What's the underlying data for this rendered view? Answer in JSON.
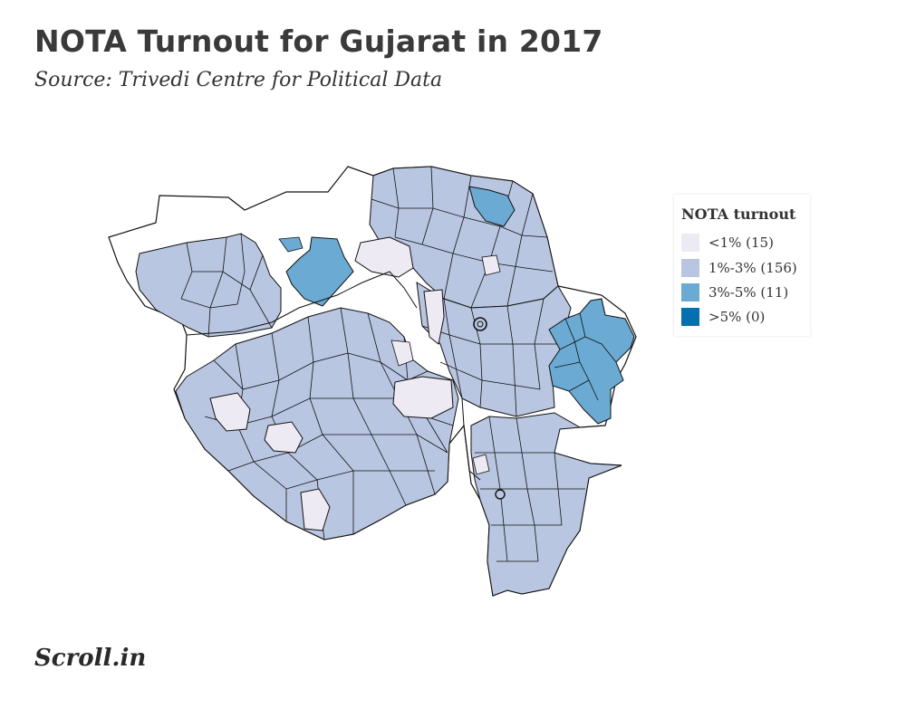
{
  "header": {
    "title": "NOTA Turnout for Gujarat in 2017",
    "subtitle": "Source: Trivedi Centre for Political Data"
  },
  "legend": {
    "title": "NOTA turnout",
    "items": [
      {
        "label": "<1% (15)",
        "color": "#eeeaf4"
      },
      {
        "label": "1%-3% (156)",
        "color": "#b9c6e1"
      },
      {
        "label": "3%-5% (11)",
        "color": "#6aaad3"
      },
      {
        "label": ">5% (0)",
        "color": "#0570b0"
      }
    ]
  },
  "brand": {
    "name": "Scroll.in"
  }
}
